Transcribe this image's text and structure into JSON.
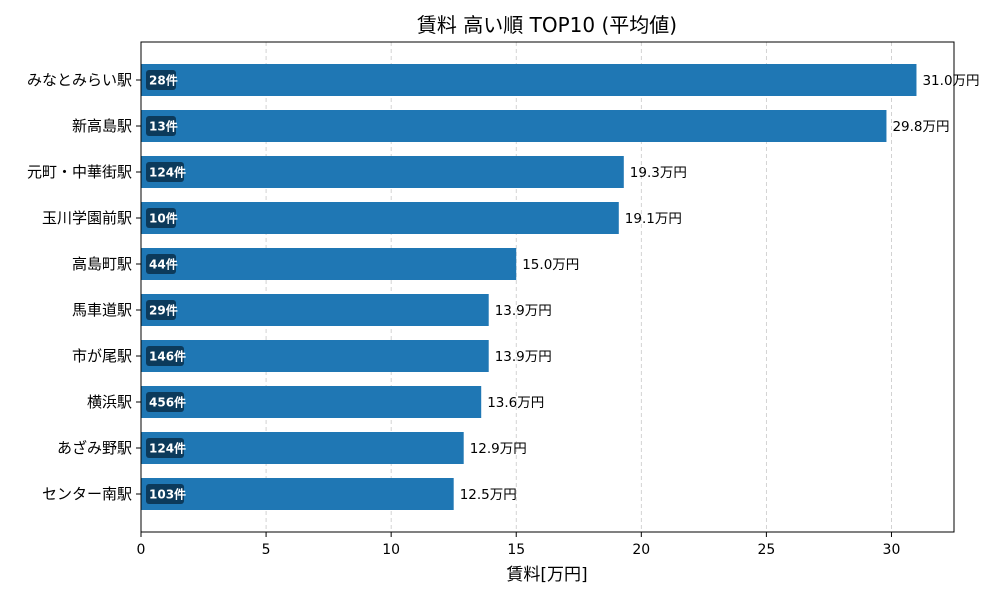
{
  "chart_data": {
    "type": "bar",
    "orientation": "horizontal",
    "title": "賃料 高い順 TOP10 (平均値)",
    "xlabel": "賃料[万円]",
    "ylabel": "",
    "xlim": [
      0,
      32.5
    ],
    "xticks": [
      0,
      5,
      10,
      15,
      20,
      25,
      30
    ],
    "grid": "x-dashed",
    "bar_color": "#1f77b4",
    "badge_color": "#0c3a5b",
    "value_suffix": "万円",
    "categories": [
      "みなとみらい駅",
      "新高島駅",
      "元町・中華街駅",
      "玉川学園前駅",
      "高島町駅",
      "馬車道駅",
      "市が尾駅",
      "横浜駅",
      "あざみ野駅",
      "センター南駅"
    ],
    "values": [
      31.0,
      29.8,
      19.3,
      19.1,
      15.0,
      13.9,
      13.9,
      13.6,
      12.9,
      12.5
    ],
    "value_labels": [
      "31.0万円",
      "29.8万円",
      "19.3万円",
      "19.1万円",
      "15.0万円",
      "13.9万円",
      "13.9万円",
      "13.6万円",
      "12.9万円",
      "12.5万円"
    ],
    "count_labels": [
      "28件",
      "13件",
      "124件",
      "10件",
      "44件",
      "29件",
      "146件",
      "456件",
      "124件",
      "103件"
    ]
  }
}
